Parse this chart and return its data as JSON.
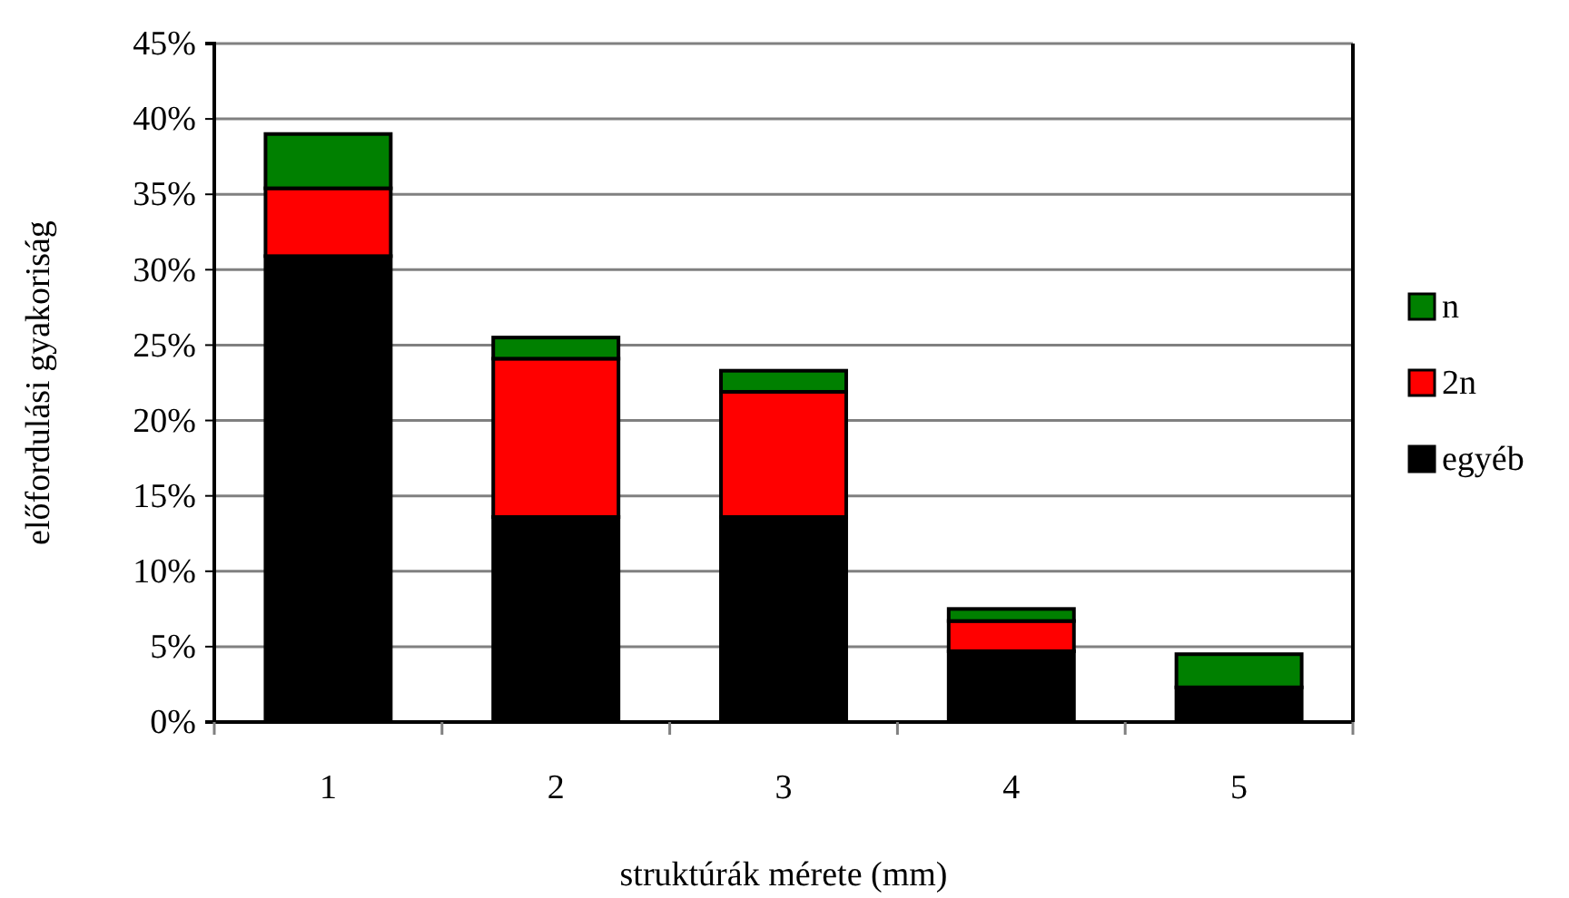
{
  "chart_data": {
    "type": "bar",
    "stacked": true,
    "xlabel": "struktúrák mérete (mm)",
    "ylabel": "előfordulási gyakoriság",
    "categories": [
      "1",
      "2",
      "3",
      "4",
      "5"
    ],
    "series": [
      {
        "name": "egyéb",
        "color": "#000000",
        "values": [
          30.9,
          13.6,
          13.6,
          4.7,
          2.3
        ]
      },
      {
        "name": "2n",
        "color": "#ff0000",
        "values": [
          4.5,
          10.5,
          8.3,
          2.0,
          0
        ]
      },
      {
        "name": "n",
        "color": "#008000",
        "values": [
          3.6,
          1.4,
          1.4,
          0.8,
          2.2
        ]
      }
    ],
    "ylim": [
      0,
      45
    ],
    "yticks": [
      {
        "value": 0,
        "label": "0%"
      },
      {
        "value": 5,
        "label": "5%"
      },
      {
        "value": 10,
        "label": "10%"
      },
      {
        "value": 15,
        "label": "15%"
      },
      {
        "value": 20,
        "label": "20%"
      },
      {
        "value": 25,
        "label": "25%"
      },
      {
        "value": 30,
        "label": "30%"
      },
      {
        "value": 35,
        "label": "35%"
      },
      {
        "value": 40,
        "label": "40%"
      },
      {
        "value": 45,
        "label": "45%"
      }
    ],
    "grid": "y",
    "legend": "right"
  }
}
